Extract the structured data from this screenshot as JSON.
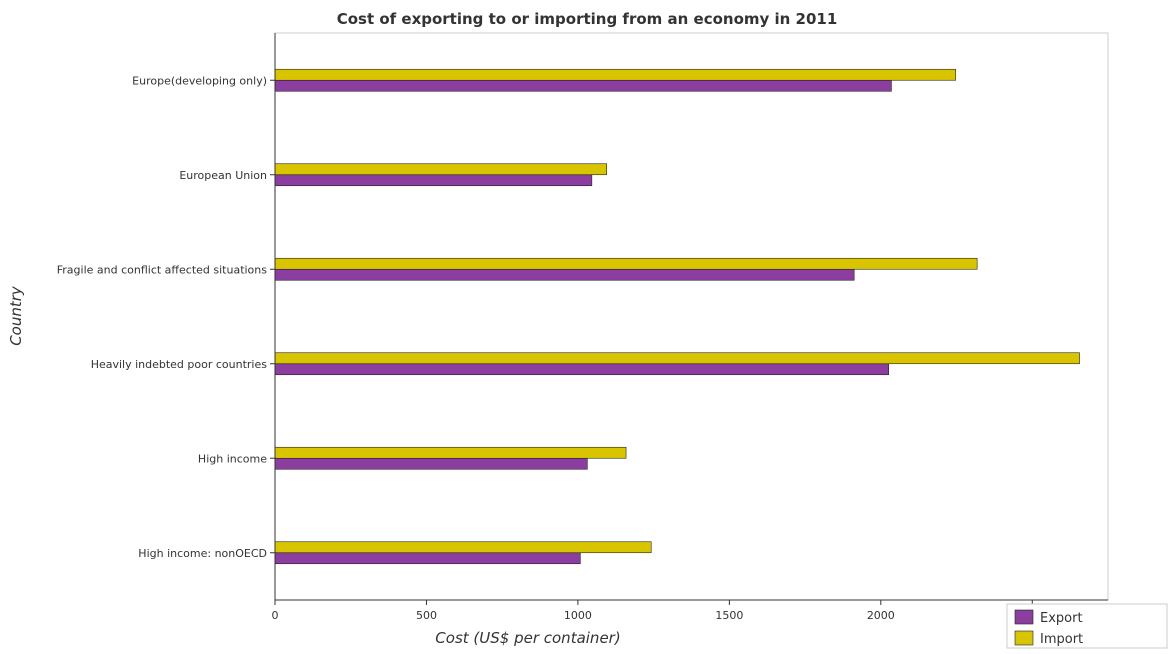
{
  "chart_data": {
    "type": "bar",
    "orientation": "horizontal",
    "title": "Cost of exporting to or importing from an economy in 2011",
    "xlabel": "Cost (US$ per container)",
    "ylabel": "Country",
    "xlim": [
      0,
      2750
    ],
    "xticks": [
      0,
      500,
      1000,
      1500,
      2000,
      2500
    ],
    "xtick_labels": [
      "0",
      "500",
      "1000",
      "1500",
      "2000",
      "2500"
    ],
    "categories": [
      "Europe(developing only)",
      "European Union",
      "Fragile and conflict affected situations",
      "Heavily indebted poor countries",
      "High income",
      "High income: nonOECD"
    ],
    "series": [
      {
        "name": "Export",
        "color": "#8b3ea0",
        "values": [
          2035,
          1046,
          1912,
          2026,
          1031,
          1008
        ]
      },
      {
        "name": "Import",
        "color": "#d9c400",
        "values": [
          2247,
          1095,
          2318,
          2656,
          1159,
          1242
        ]
      }
    ],
    "legend_position": "bottom-right",
    "grid": false
  }
}
